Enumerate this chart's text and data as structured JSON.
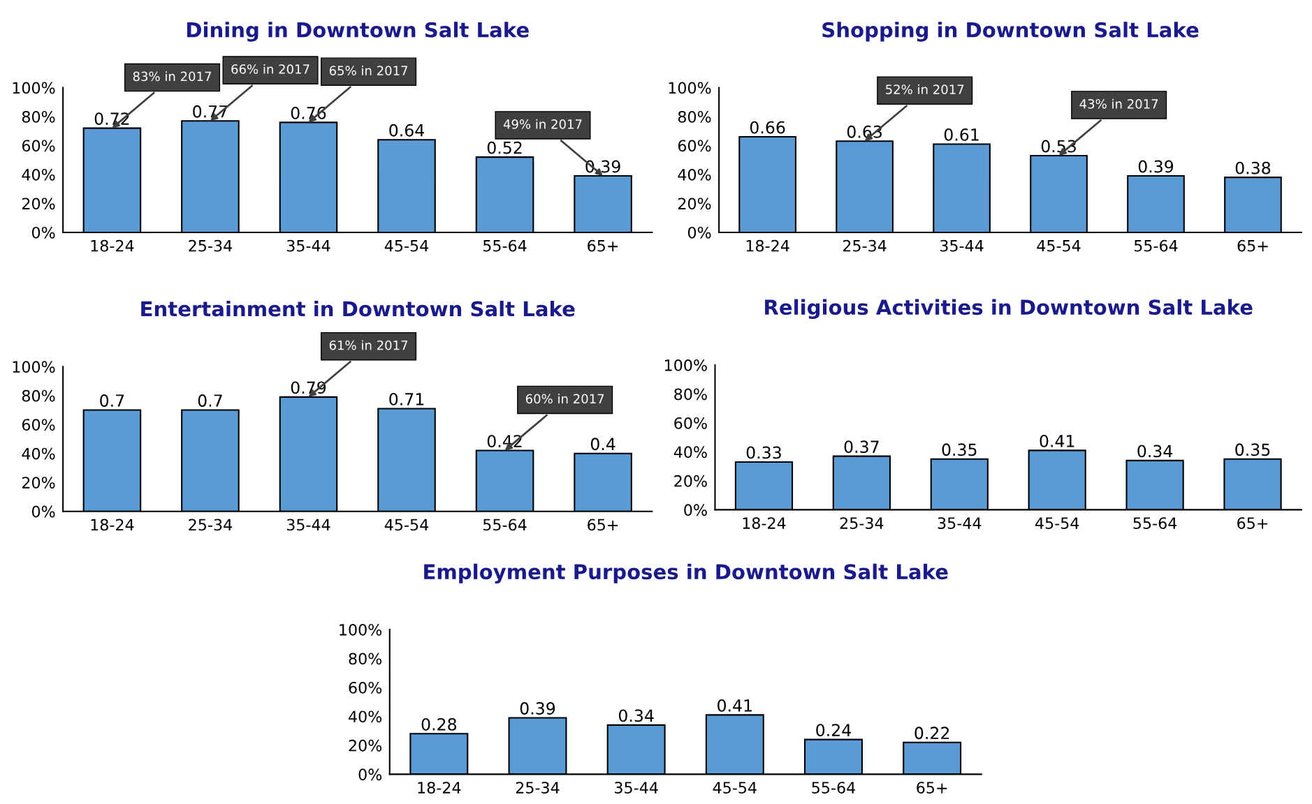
{
  "chart_data": [
    {
      "type": "bar",
      "title": "Dining in Downtown Salt Lake",
      "categories": [
        "18-24",
        "25-34",
        "35-44",
        "45-54",
        "55-64",
        "65+"
      ],
      "values": [
        0.72,
        0.77,
        0.76,
        0.64,
        0.52,
        0.39
      ],
      "color": "#5b9bd5",
      "ylim": [
        0,
        1
      ],
      "yticks": [
        {
          "value": 0,
          "label": "0%"
        },
        {
          "value": 0.2,
          "label": "20%"
        },
        {
          "value": 0.4,
          "label": "40%"
        },
        {
          "value": 0.6,
          "label": "60%"
        },
        {
          "value": 0.8,
          "label": "80%"
        },
        {
          "value": 1,
          "label": "100%"
        }
      ],
      "data_labels": true,
      "annotations": [
        {
          "text": "83% in 2017",
          "x": "18-24",
          "y": 0.72
        },
        {
          "text": "66% in 2017",
          "x": "25-34",
          "y": 0.77
        },
        {
          "text": "65% in 2017",
          "x": "35-44",
          "y": 0.76
        },
        {
          "text": "49% in 2017",
          "x": "65+",
          "y": 0.39
        }
      ]
    },
    {
      "type": "bar",
      "title": "Shopping in Downtown Salt Lake",
      "categories": [
        "18-24",
        "25-34",
        "35-44",
        "45-54",
        "55-64",
        "65+"
      ],
      "values": [
        0.66,
        0.63,
        0.61,
        0.53,
        0.39,
        0.38
      ],
      "color": "#5b9bd5",
      "ylim": [
        0,
        1
      ],
      "yticks": [
        {
          "value": 0,
          "label": "0%"
        },
        {
          "value": 0.2,
          "label": "20%"
        },
        {
          "value": 0.4,
          "label": "40%"
        },
        {
          "value": 0.6,
          "label": "60%"
        },
        {
          "value": 0.8,
          "label": "80%"
        },
        {
          "value": 1,
          "label": "100%"
        }
      ],
      "data_labels": true,
      "annotations": [
        {
          "text": "52% in 2017",
          "x": "25-34",
          "y": 0.63
        },
        {
          "text": "43% in 2017",
          "x": "45-54",
          "y": 0.53
        }
      ]
    },
    {
      "type": "bar",
      "title": "Entertainment in Downtown Salt Lake",
      "categories": [
        "18-24",
        "25-34",
        "35-44",
        "45-54",
        "55-64",
        "65+"
      ],
      "values": [
        0.7,
        0.7,
        0.79,
        0.71,
        0.42,
        0.4
      ],
      "color": "#5b9bd5",
      "ylim": [
        0,
        1
      ],
      "yticks": [
        {
          "value": 0,
          "label": "0%"
        },
        {
          "value": 0.2,
          "label": "20%"
        },
        {
          "value": 0.4,
          "label": "40%"
        },
        {
          "value": 0.6,
          "label": "60%"
        },
        {
          "value": 0.8,
          "label": "80%"
        },
        {
          "value": 1,
          "label": "100%"
        }
      ],
      "data_labels": true,
      "annotations": [
        {
          "text": "61% in 2017",
          "x": "35-44",
          "y": 0.79
        },
        {
          "text": "60% in 2017",
          "x": "55-64",
          "y": 0.42
        }
      ]
    },
    {
      "type": "bar",
      "title": "Religious Activities in Downtown Salt Lake",
      "categories": [
        "18-24",
        "25-34",
        "35-44",
        "45-54",
        "55-64",
        "65+"
      ],
      "values": [
        0.33,
        0.37,
        0.35,
        0.41,
        0.34,
        0.35
      ],
      "color": "#5b9bd5",
      "ylim": [
        0,
        1
      ],
      "yticks": [
        {
          "value": 0,
          "label": "0%"
        },
        {
          "value": 0.2,
          "label": "20%"
        },
        {
          "value": 0.4,
          "label": "40%"
        },
        {
          "value": 0.6,
          "label": "60%"
        },
        {
          "value": 0.8,
          "label": "80%"
        },
        {
          "value": 1,
          "label": "100%"
        }
      ],
      "data_labels": true
    },
    {
      "type": "bar",
      "title": "Employment Purposes in Downtown Salt Lake",
      "categories": [
        "18-24",
        "25-34",
        "35-44",
        "45-54",
        "55-64",
        "65+"
      ],
      "values": [
        0.28,
        0.39,
        0.34,
        0.41,
        0.24,
        0.22
      ],
      "color": "#5b9bd5",
      "ylim": [
        0,
        1
      ],
      "yticks": [
        {
          "value": 0,
          "label": "0%"
        },
        {
          "value": 0.2,
          "label": "20%"
        },
        {
          "value": 0.4,
          "label": "40%"
        },
        {
          "value": 0.6,
          "label": "60%"
        },
        {
          "value": 0.8,
          "label": "80%"
        },
        {
          "value": 1,
          "label": "100%"
        }
      ],
      "data_labels": true
    }
  ]
}
